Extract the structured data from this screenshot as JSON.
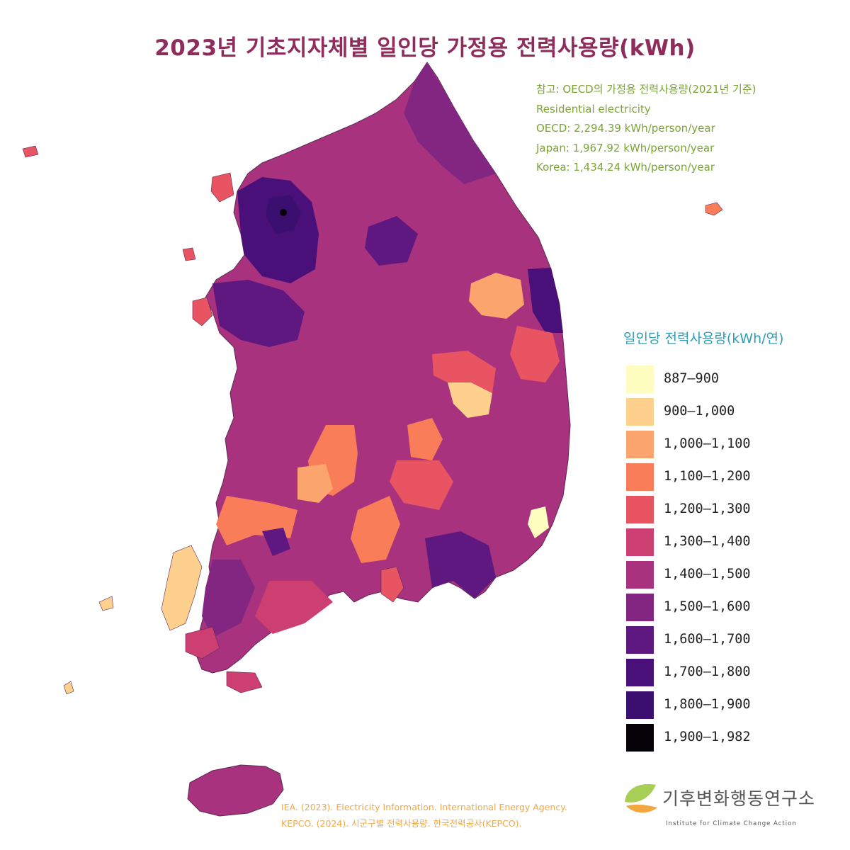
{
  "title": "2023년 기초지자체별 일인당 가정용 전력사용량(kWh)",
  "reference": {
    "lines": [
      "참고: OECD의 가정용 전력사용량(2021년 기준)",
      "Residential electricity",
      "OECD: 2,294.39 kWh/person/year",
      "Japan: 1,967.92 kWh/person/year",
      "Korea: 1,434.24 kWh/person/year"
    ],
    "color": "#7aa535"
  },
  "legend": {
    "title": "일인당 전력사용량(kWh/연)",
    "items": [
      {
        "label": "887–900",
        "color": "#fcfdbf"
      },
      {
        "label": "900–1,000",
        "color": "#fdd08e"
      },
      {
        "label": "1,000–1,100",
        "color": "#fca46e"
      },
      {
        "label": "1,100–1,200",
        "color": "#f87d58"
      },
      {
        "label": "1,200–1,300",
        "color": "#e95462"
      },
      {
        "label": "1,300–1,400",
        "color": "#cd3f70"
      },
      {
        "label": "1,400–1,500",
        "color": "#a8327d"
      },
      {
        "label": "1,500–1,600",
        "color": "#832681"
      },
      {
        "label": "1,600–1,700",
        "color": "#5f187f"
      },
      {
        "label": "1,700–1,800",
        "color": "#481078"
      },
      {
        "label": "1,800–1,900",
        "color": "#3b0f70"
      },
      {
        "label": "1,900–1,982",
        "color": "#050308"
      }
    ]
  },
  "sources": [
    "IEA. (2023). Electricity Information. International Energy Agency.",
    "KEPCO. (2024). 시군구별 전력사용량. 한국전력공사(KEPCO)."
  ],
  "logo": {
    "name": "기후변화행동연구소",
    "subtitle": "Institute for Climate Change Action",
    "icon": "leaf-logo-icon"
  }
}
